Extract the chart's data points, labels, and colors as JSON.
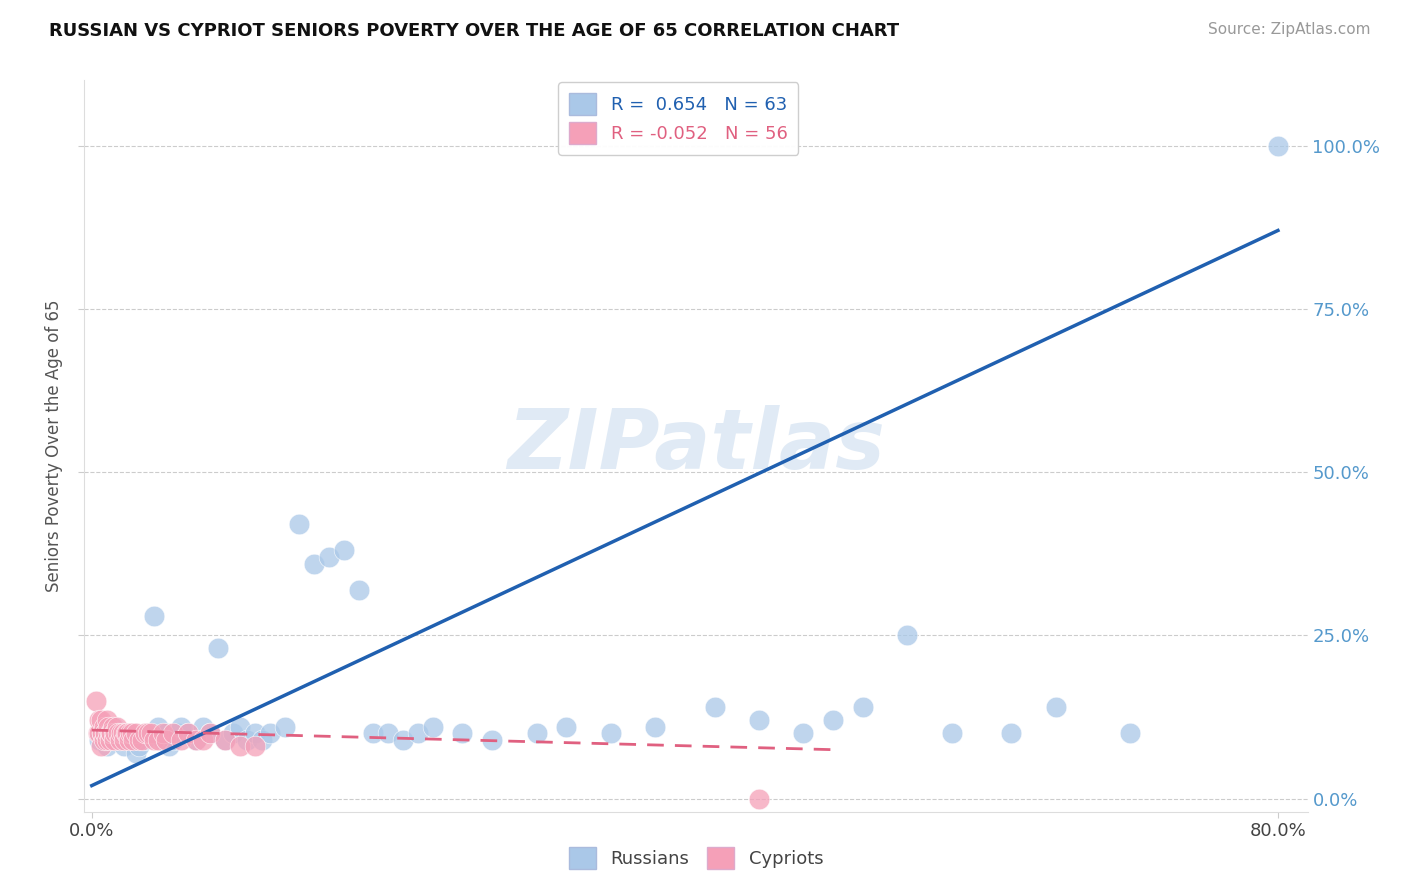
{
  "title": "RUSSIAN VS CYPRIOT SENIORS POVERTY OVER THE AGE OF 65 CORRELATION CHART",
  "source": "Source: ZipAtlas.com",
  "ylabel": "Seniors Poverty Over the Age of 65",
  "ylim": [
    -0.02,
    1.1
  ],
  "xlim": [
    -0.005,
    0.82
  ],
  "russian_R": 0.654,
  "russian_N": 63,
  "cypriot_R": -0.052,
  "cypriot_N": 56,
  "russian_color": "#aac8e8",
  "cypriot_color": "#f5a0b8",
  "russian_line_color": "#2060b0",
  "cypriot_line_color": "#e06080",
  "watermark_text": "ZIPatlas",
  "watermark_color": "#ccddef",
  "yticks": [
    0.0,
    0.25,
    0.5,
    0.75,
    1.0
  ],
  "ytick_labels": [
    "0.0%",
    "25.0%",
    "50.0%",
    "75.0%",
    "100.0%"
  ],
  "xticks": [
    0.0,
    0.8
  ],
  "xtick_labels": [
    "0.0%",
    "80.0%"
  ],
  "russian_x": [
    0.005,
    0.008,
    0.01,
    0.012,
    0.015,
    0.018,
    0.02,
    0.022,
    0.025,
    0.028,
    0.03,
    0.032,
    0.035,
    0.038,
    0.04,
    0.042,
    0.045,
    0.048,
    0.05,
    0.052,
    0.055,
    0.058,
    0.06,
    0.065,
    0.07,
    0.075,
    0.08,
    0.085,
    0.09,
    0.095,
    0.1,
    0.105,
    0.11,
    0.115,
    0.12,
    0.13,
    0.14,
    0.15,
    0.16,
    0.17,
    0.18,
    0.19,
    0.2,
    0.21,
    0.22,
    0.23,
    0.25,
    0.27,
    0.3,
    0.32,
    0.35,
    0.38,
    0.42,
    0.45,
    0.48,
    0.5,
    0.52,
    0.55,
    0.58,
    0.62,
    0.65,
    0.7,
    0.8
  ],
  "russian_y": [
    0.09,
    0.1,
    0.08,
    0.1,
    0.11,
    0.09,
    0.1,
    0.08,
    0.1,
    0.09,
    0.07,
    0.08,
    0.09,
    0.1,
    0.1,
    0.28,
    0.11,
    0.09,
    0.1,
    0.08,
    0.09,
    0.1,
    0.11,
    0.1,
    0.09,
    0.11,
    0.1,
    0.23,
    0.09,
    0.1,
    0.11,
    0.09,
    0.1,
    0.09,
    0.1,
    0.11,
    0.42,
    0.36,
    0.37,
    0.38,
    0.32,
    0.1,
    0.1,
    0.09,
    0.1,
    0.11,
    0.1,
    0.09,
    0.1,
    0.11,
    0.1,
    0.11,
    0.14,
    0.12,
    0.1,
    0.12,
    0.14,
    0.25,
    0.1,
    0.1,
    0.14,
    0.1,
    1.0
  ],
  "cypriot_x": [
    0.003,
    0.004,
    0.005,
    0.005,
    0.006,
    0.006,
    0.007,
    0.007,
    0.008,
    0.008,
    0.009,
    0.009,
    0.01,
    0.01,
    0.011,
    0.011,
    0.012,
    0.012,
    0.013,
    0.013,
    0.014,
    0.015,
    0.015,
    0.016,
    0.017,
    0.018,
    0.019,
    0.02,
    0.021,
    0.022,
    0.023,
    0.024,
    0.025,
    0.026,
    0.027,
    0.028,
    0.03,
    0.032,
    0.034,
    0.036,
    0.038,
    0.04,
    0.042,
    0.045,
    0.048,
    0.05,
    0.055,
    0.06,
    0.065,
    0.07,
    0.075,
    0.08,
    0.09,
    0.1,
    0.11,
    0.45
  ],
  "cypriot_y": [
    0.15,
    0.1,
    0.12,
    0.1,
    0.08,
    0.12,
    0.1,
    0.1,
    0.09,
    0.11,
    0.1,
    0.1,
    0.12,
    0.09,
    0.1,
    0.11,
    0.1,
    0.09,
    0.1,
    0.1,
    0.11,
    0.1,
    0.09,
    0.1,
    0.11,
    0.1,
    0.09,
    0.1,
    0.1,
    0.09,
    0.1,
    0.1,
    0.09,
    0.1,
    0.1,
    0.09,
    0.1,
    0.09,
    0.09,
    0.1,
    0.1,
    0.1,
    0.09,
    0.09,
    0.1,
    0.09,
    0.1,
    0.09,
    0.1,
    0.09,
    0.09,
    0.1,
    0.09,
    0.08,
    0.08,
    0.0
  ],
  "russian_line_x": [
    0.0,
    0.8
  ],
  "russian_line_y": [
    0.02,
    0.87
  ],
  "cypriot_line_x": [
    0.0,
    0.5
  ],
  "cypriot_line_y": [
    0.105,
    0.075
  ]
}
